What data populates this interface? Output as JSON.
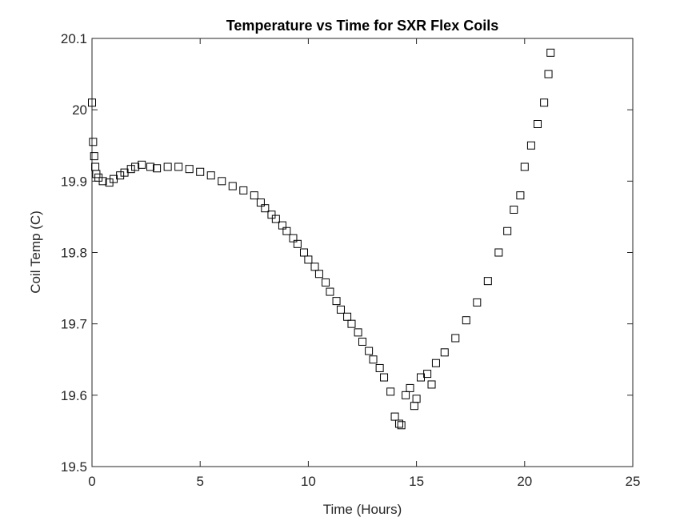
{
  "chart_data": {
    "type": "scatter",
    "title": "Temperature vs Time for SXR Flex Coils",
    "x_label": "Time (Hours)",
    "y_label": "Coil Temp (C)",
    "marker": "square",
    "color": "#000000",
    "x": [
      0,
      0.05,
      0.1,
      0.15,
      0.2,
      0.3,
      0.5,
      0.8,
      1.0,
      1.3,
      1.5,
      1.8,
      2.0,
      2.3,
      2.7,
      3.0,
      3.5,
      4.0,
      4.5,
      5.0,
      5.5,
      6.0,
      6.5,
      7.0,
      7.5,
      7.8,
      8.0,
      8.3,
      8.5,
      8.8,
      9.0,
      9.3,
      9.5,
      9.8,
      10.0,
      10.3,
      10.5,
      10.8,
      11.0,
      11.3,
      11.5,
      11.8,
      12.0,
      12.3,
      12.5,
      12.8,
      13.0,
      13.3,
      13.5,
      13.8,
      14.0,
      14.2,
      14.3,
      14.5,
      14.7,
      14.9,
      15.0,
      15.2,
      15.5,
      15.7,
      15.9,
      16.3,
      16.8,
      17.3,
      17.8,
      18.3,
      18.8,
      19.2,
      19.5,
      19.8,
      20.0,
      20.3,
      20.6,
      20.9,
      21.1,
      21.2
    ],
    "series": [
      {
        "name": "Coil Temp",
        "color": "#000000",
        "values": [
          20.01,
          19.955,
          19.935,
          19.92,
          19.91,
          19.905,
          19.9,
          19.898,
          19.903,
          19.908,
          19.912,
          19.917,
          19.92,
          19.923,
          19.92,
          19.918,
          19.92,
          19.92,
          19.917,
          19.913,
          19.908,
          19.9,
          19.893,
          19.887,
          19.88,
          19.87,
          19.862,
          19.853,
          19.847,
          19.838,
          19.83,
          19.82,
          19.812,
          19.8,
          19.79,
          19.78,
          19.77,
          19.758,
          19.745,
          19.732,
          19.72,
          19.71,
          19.7,
          19.688,
          19.675,
          19.662,
          19.65,
          19.638,
          19.625,
          19.605,
          19.57,
          19.56,
          19.558,
          19.6,
          19.61,
          19.585,
          19.595,
          19.625,
          19.63,
          19.615,
          19.645,
          19.66,
          19.68,
          19.705,
          19.73,
          19.76,
          19.8,
          19.83,
          19.86,
          19.88,
          19.92,
          19.95,
          19.98,
          20.01,
          20.05,
          20.08
        ]
      }
    ],
    "xlim": [
      0,
      25
    ],
    "xticks": [
      0,
      5,
      10,
      15,
      20,
      25
    ],
    "ylim": [
      19.5,
      20.1
    ],
    "yticks": [
      19.5,
      19.6,
      19.7,
      19.8,
      19.9,
      20,
      20.1
    ]
  }
}
